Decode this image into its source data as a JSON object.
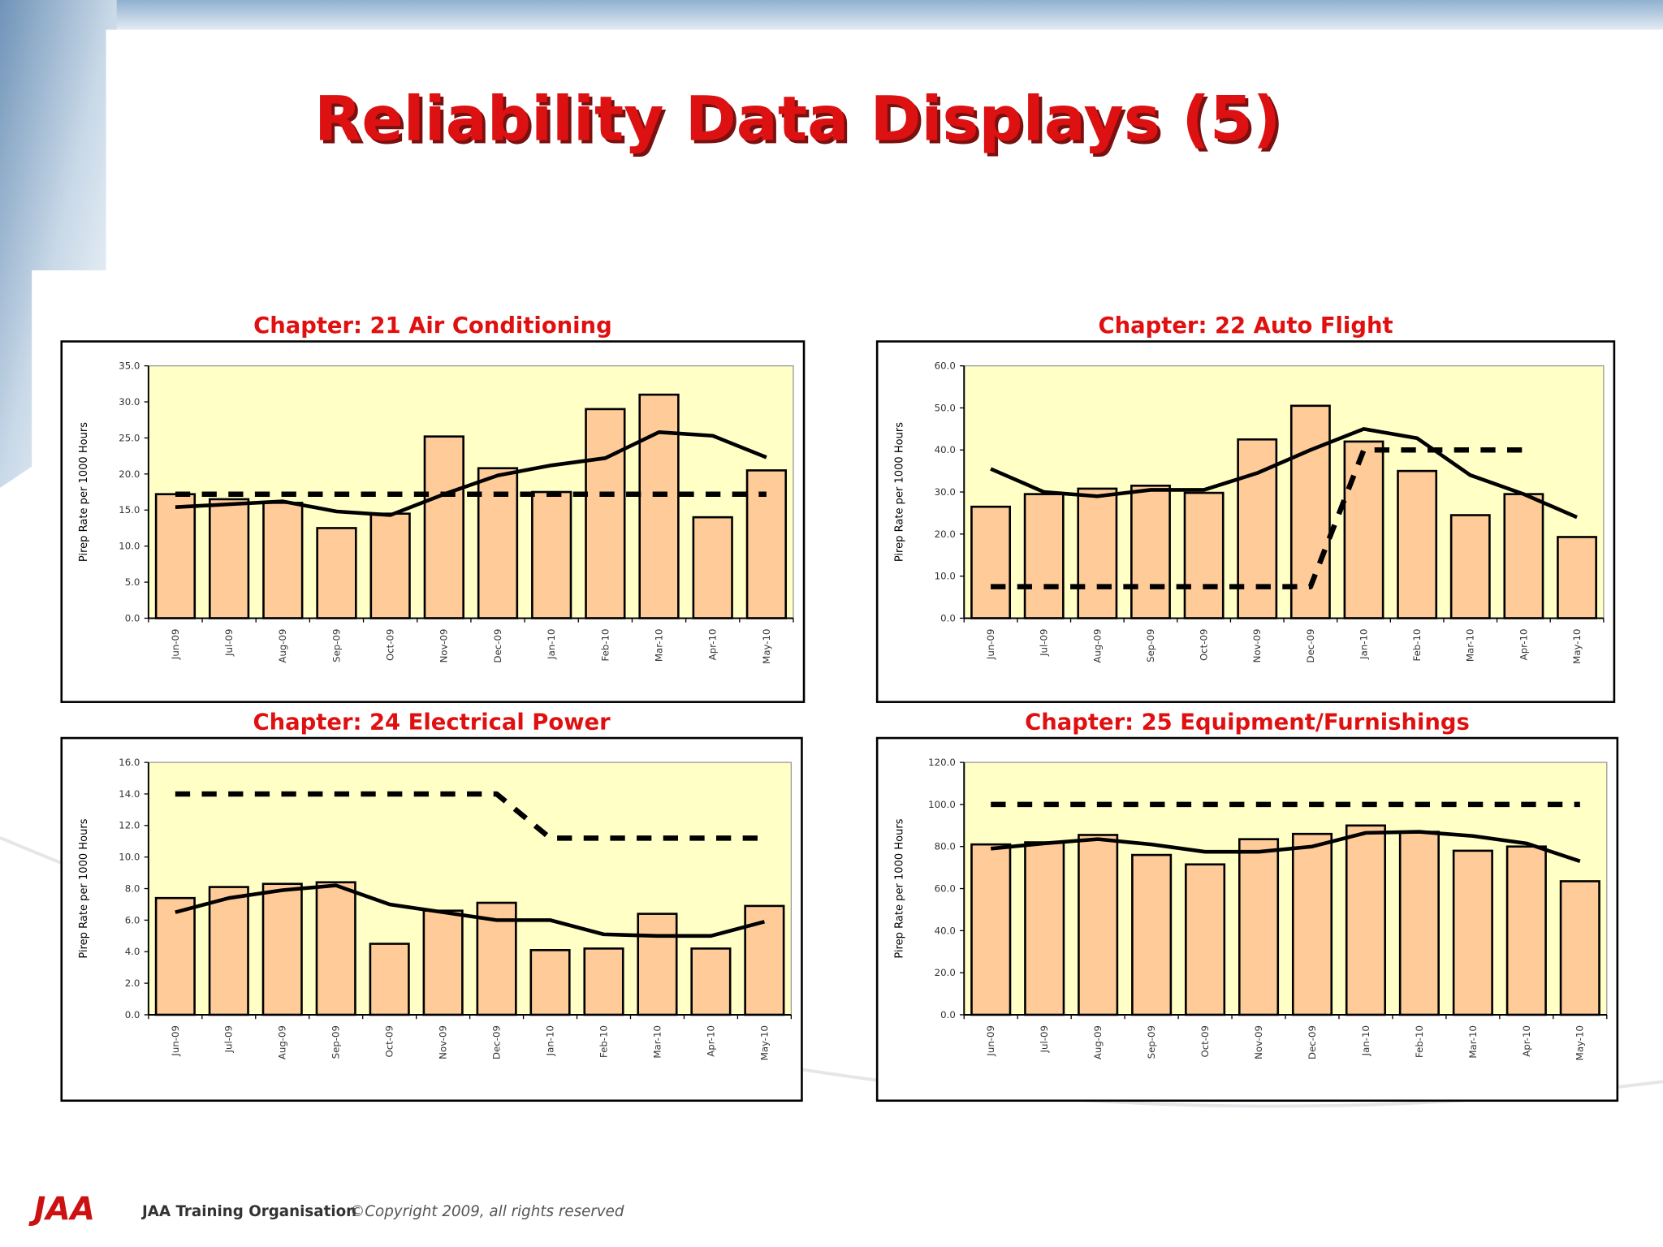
{
  "header": {
    "title": "Reliability Data Displays (5)"
  },
  "footer": {
    "logo": "JAA",
    "org": "JAA Training Organisation",
    "copyright": "©Copyright 2009, all rights reserved"
  },
  "chart_data": [
    {
      "type": "bar",
      "title": "Chapter: 21 Air Conditioning",
      "ylabel": "Pirep Rate per 1000 Hours",
      "categories": [
        "Jun-09",
        "Jul-09",
        "Aug-09",
        "Sep-09",
        "Oct-09",
        "Nov-09",
        "Dec-09",
        "Jan-10",
        "Feb-10",
        "Mar-10",
        "Apr-10",
        "May-10"
      ],
      "ylim": [
        0,
        35
      ],
      "yticks": [
        {
          "value": 0,
          "label": "0.0"
        },
        {
          "value": 5,
          "label": "5.0"
        },
        {
          "value": 10,
          "label": "10.0"
        },
        {
          "value": 15,
          "label": "15.0"
        },
        {
          "value": 20,
          "label": "20.0"
        },
        {
          "value": 25,
          "label": "25.0"
        },
        {
          "value": 30,
          "label": "30.0"
        },
        {
          "value": 35,
          "label": "35.0"
        }
      ],
      "background": "#ffffc6",
      "series": [
        {
          "type": "bar",
          "color": "#ffcc99",
          "values": [
            17.2,
            16.5,
            16,
            12.5,
            14.5,
            25.2,
            20.8,
            17.5,
            29,
            31,
            14,
            20.5
          ]
        },
        {
          "type": "line",
          "color": "#000000",
          "values": [
            15.4,
            15.8,
            16.2,
            14.8,
            14.3,
            17.2,
            19.8,
            21.2,
            22.2,
            25.8,
            25.3,
            22.3
          ]
        },
        {
          "type": "line",
          "style": "dashed",
          "color": "#000000",
          "values": [
            17.2,
            17.2,
            17.2,
            17.2,
            17.2,
            17.2,
            17.2,
            17.2,
            17.2,
            17.2,
            17.2,
            17.2
          ]
        }
      ]
    },
    {
      "type": "bar",
      "title": "Chapter: 22 Auto Flight",
      "ylabel": "Pirep Rate per 1000 Hours",
      "categories": [
        "Jun-09",
        "Jul-09",
        "Aug-09",
        "Sep-09",
        "Oct-09",
        "Nov-09",
        "Dec-09",
        "Jan-10",
        "Feb-10",
        "Mar-10",
        "Apr-10",
        "May-10"
      ],
      "ylim": [
        0,
        60
      ],
      "yticks": [
        {
          "value": 0,
          "label": "0.0"
        },
        {
          "value": 10,
          "label": "10.0"
        },
        {
          "value": 20,
          "label": "20.0"
        },
        {
          "value": 30,
          "label": "30.0"
        },
        {
          "value": 40,
          "label": "40.0"
        },
        {
          "value": 50,
          "label": "50.0"
        },
        {
          "value": 60,
          "label": "60.0"
        }
      ],
      "background": "#ffffc6",
      "series": [
        {
          "type": "bar",
          "color": "#ffcc99",
          "values": [
            26.5,
            29.5,
            30.8,
            31.5,
            29.8,
            42.5,
            50.5,
            42,
            35,
            24.5,
            29.5,
            19.3
          ]
        },
        {
          "type": "line",
          "color": "#000000",
          "values": [
            35.5,
            30,
            29,
            30.5,
            30.5,
            34.5,
            40,
            45,
            42.8,
            34,
            29.5,
            24
          ]
        },
        {
          "type": "line",
          "style": "dashed",
          "color": "#000000",
          "values": [
            7.5,
            7.5,
            7.5,
            7.5,
            7.5,
            7.5,
            7.5,
            40,
            40,
            40,
            40,
            null
          ]
        }
      ]
    },
    {
      "type": "bar",
      "title": "Chapter: 24 Electrical Power",
      "ylabel": "Pirep Rate per 1000 Hours",
      "categories": [
        "Jun-09",
        "Jul-09",
        "Aug-09",
        "Sep-09",
        "Oct-09",
        "Nov-09",
        "Dec-09",
        "Jan-10",
        "Feb-10",
        "Mar-10",
        "Apr-10",
        "May-10"
      ],
      "ylim": [
        0,
        16
      ],
      "yticks": [
        {
          "value": 0,
          "label": "0.0"
        },
        {
          "value": 2,
          "label": "2.0"
        },
        {
          "value": 4,
          "label": "4.0"
        },
        {
          "value": 6,
          "label": "6.0"
        },
        {
          "value": 8,
          "label": "8.0"
        },
        {
          "value": 10,
          "label": "10.0"
        },
        {
          "value": 12,
          "label": "12.0"
        },
        {
          "value": 14,
          "label": "14.0"
        },
        {
          "value": 16,
          "label": "16.0"
        }
      ],
      "background": "#ffffc6",
      "series": [
        {
          "type": "bar",
          "color": "#ffcc99",
          "values": [
            7.4,
            8.1,
            8.3,
            8.4,
            4.5,
            6.6,
            7.1,
            4.1,
            4.2,
            6.4,
            4.2,
            6.9
          ]
        },
        {
          "type": "line",
          "color": "#000000",
          "values": [
            6.5,
            7.4,
            7.9,
            8.2,
            7.0,
            6.5,
            6.0,
            6.0,
            5.1,
            5.0,
            5.0,
            5.9
          ]
        },
        {
          "type": "line",
          "style": "dashed",
          "color": "#000000",
          "values": [
            14,
            14,
            14,
            14,
            14,
            14,
            14,
            11.2,
            11.2,
            11.2,
            11.2,
            11.2
          ]
        }
      ]
    },
    {
      "type": "bar",
      "title": "Chapter: 25 Equipment/Furnishings",
      "ylabel": "Pirep Rate per 1000 Hours",
      "categories": [
        "Jun-09",
        "Jul-09",
        "Aug-09",
        "Sep-09",
        "Oct-09",
        "Nov-09",
        "Dec-09",
        "Jan-10",
        "Feb-10",
        "Mar-10",
        "Apr-10",
        "May-10"
      ],
      "ylim": [
        0,
        120
      ],
      "yticks": [
        {
          "value": 0,
          "label": "0.0"
        },
        {
          "value": 20,
          "label": "20.0"
        },
        {
          "value": 40,
          "label": "40.0"
        },
        {
          "value": 60,
          "label": "60.0"
        },
        {
          "value": 80,
          "label": "80.0"
        },
        {
          "value": 100,
          "label": "100.0"
        },
        {
          "value": 120,
          "label": "120.0"
        }
      ],
      "background": "#ffffc6",
      "series": [
        {
          "type": "bar",
          "color": "#ffcc99",
          "values": [
            81,
            82,
            85.5,
            76,
            71.5,
            83.5,
            86,
            90,
            87,
            78,
            80,
            63.5
          ]
        },
        {
          "type": "line",
          "color": "#000000",
          "values": [
            79,
            81.5,
            83.5,
            81,
            77.5,
            77.5,
            80,
            86.5,
            87,
            85,
            81.5,
            73
          ]
        },
        {
          "type": "line",
          "style": "dashed",
          "color": "#000000",
          "values": [
            100,
            100,
            100,
            100,
            100,
            100,
            100,
            100,
            100,
            100,
            100,
            100
          ]
        }
      ]
    }
  ]
}
